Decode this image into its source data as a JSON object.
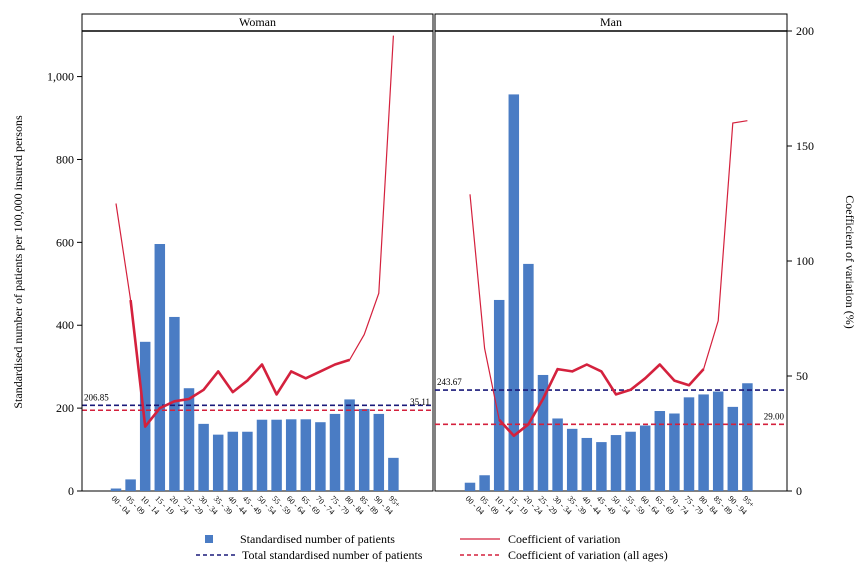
{
  "chart_data": {
    "type": "bar",
    "ylabel": "Standardised number of patients per 100,000 insured persons",
    "y2label": "Coefficient of variation (%)",
    "ylim": [
      0,
      1110
    ],
    "y2lim": [
      0,
      200
    ],
    "yticks": [
      0,
      200,
      400,
      600,
      800,
      1000
    ],
    "ytick_labels": [
      "0",
      "200",
      "400",
      "600",
      "800",
      "1,000"
    ],
    "y2ticks": [
      0,
      50,
      100,
      150,
      200
    ],
    "y2tick_labels": [
      "0",
      "50",
      "100",
      "150",
      "200"
    ],
    "categories": [
      "00-04",
      "05-09",
      "10-14",
      "15-19",
      "20-24",
      "25-29",
      "30-34",
      "35-39",
      "40-44",
      "45-49",
      "50-54",
      "55-59",
      "60-64",
      "65-69",
      "70-74",
      "75-79",
      "80-84",
      "85-89",
      "90-94",
      "95+"
    ],
    "category_labels": [
      "00 - 04",
      "05 - 09",
      "10 - 14",
      "15 - 19",
      "20 - 24",
      "25 - 29",
      "30 - 34",
      "35 - 39",
      "40 - 44",
      "45 - 49",
      "50 - 54",
      "55 - 59",
      "60 - 64",
      "65 - 69",
      "70 - 74",
      "75 - 79",
      "80 - 84",
      "85 - 89",
      "90 - 94",
      "95+"
    ],
    "colors": {
      "bars": "#4a7cc4",
      "cv": "#d4213d",
      "total_line": "#1a1a7a",
      "cv_all_line": "#d4213d"
    },
    "panels": [
      {
        "title": "Woman",
        "bars": [
          6,
          28,
          360,
          596,
          420,
          248,
          162,
          136,
          143,
          143,
          172,
          172,
          173,
          173,
          166,
          186,
          221,
          198,
          186,
          80
        ],
        "cv": [
          125,
          83,
          28,
          36,
          39,
          40,
          44,
          52,
          43,
          48,
          55,
          42,
          52,
          49,
          52,
          55,
          57,
          68,
          86,
          198
        ],
        "cv_thick_from": 1,
        "cv_thick_to": 16,
        "total": 206.85,
        "total_label": "206.85",
        "cv_all": 35.11,
        "cv_all_label": "35.11"
      },
      {
        "title": "Man",
        "bars": [
          20,
          38,
          461,
          957,
          548,
          280,
          175,
          150,
          128,
          118,
          135,
          143,
          158,
          193,
          187,
          226,
          233,
          240,
          203,
          260
        ],
        "cv": [
          129,
          62,
          31,
          24,
          29,
          40,
          53,
          52,
          55,
          52,
          42,
          44,
          49,
          55,
          48,
          46,
          53,
          74,
          160,
          161
        ],
        "cv_thick_from": 2,
        "cv_thick_to": 16,
        "total": 243.67,
        "total_label": "243.67",
        "cv_all": 29.0,
        "cv_all_label": "29.00"
      }
    ],
    "legend": {
      "bars": "Standardised number of patients",
      "cv": "Coefficient of variation",
      "total": "Total standardised number of patients",
      "cv_all": "Coefficient of variation (all ages)"
    }
  }
}
